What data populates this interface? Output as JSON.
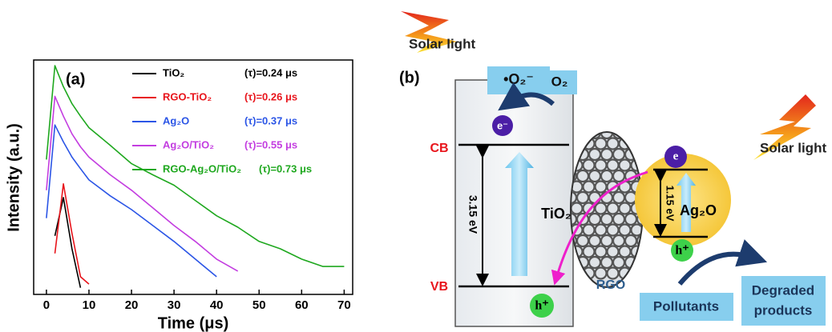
{
  "chart_data": {
    "type": "line",
    "panel_label": "(a)",
    "x_label": "Time (μs)",
    "y_label": "Intensity (a.u.)",
    "x": [
      0,
      2,
      4,
      6,
      8,
      10,
      15,
      20,
      25,
      30,
      35,
      40,
      45,
      50,
      55,
      60,
      65,
      70
    ],
    "xlim": [
      -3,
      72
    ],
    "xticks": [
      0,
      10,
      20,
      30,
      40,
      50,
      60,
      70
    ],
    "ylim": [
      1,
      10000
    ],
    "log_scale_y": true,
    "grid": false,
    "series": [
      {
        "name": "TiO₂",
        "lifetime": "(τ)=0.24 μs",
        "color": "#000000",
        "values": [
          null,
          10,
          45,
          6,
          1.3,
          null,
          null,
          null,
          null,
          null,
          null,
          null,
          null,
          null,
          null,
          null,
          null,
          null
        ]
      },
      {
        "name": "RGO-TiO₂",
        "lifetime": "(τ)=0.26 μs",
        "color": "#e8141b",
        "values": [
          null,
          5,
          77,
          11,
          2,
          1.5,
          null,
          null,
          null,
          null,
          null,
          null,
          null,
          null,
          null,
          null,
          null,
          null
        ]
      },
      {
        "name": "Ag₂O",
        "lifetime": "(τ)=0.37 μs",
        "color": "#2b55e6",
        "values": [
          20,
          780,
          400,
          220,
          140,
          90,
          48,
          28,
          15,
          8,
          4,
          2,
          null,
          null,
          null,
          null,
          null,
          null
        ]
      },
      {
        "name": "Ag₂O/TiO₂",
        "lifetime": "(τ)=0.55 μs",
        "color": "#c33de0",
        "values": [
          60,
          2400,
          1100,
          550,
          330,
          220,
          110,
          60,
          30,
          15,
          8,
          4,
          2.5,
          null,
          null,
          null,
          null,
          null
        ]
      },
      {
        "name": "RGO-Ag₂O/TiO₂",
        "lifetime": "(τ)=0.73 μs",
        "color": "#1fa81f",
        "values": [
          200,
          8000,
          3500,
          1800,
          1100,
          700,
          350,
          170,
          110,
          73,
          40,
          22,
          14,
          8,
          6,
          4,
          3,
          3
        ]
      }
    ]
  },
  "diagram": {
    "panel_label": "(b)",
    "solar_light_left": "Solar light",
    "superoxide": "•O₂⁻",
    "oxygen": "O₂",
    "electron_tio2": "e⁻",
    "cb": "CB",
    "vb": "VB",
    "band_gap_tio2": "3.15 eV",
    "tio2": "TiO₂",
    "rgo": "RGO",
    "electron_ag2o": "e",
    "band_gap_ag2o": "1.15 eV",
    "ag2o": "Ag₂O",
    "hole_ag2o": "h⁺",
    "hole_tio2": "h⁺",
    "solar_light_right": "Solar light",
    "pollutants": "Pollutants",
    "degraded_products": [
      "Degraded",
      "products"
    ]
  }
}
